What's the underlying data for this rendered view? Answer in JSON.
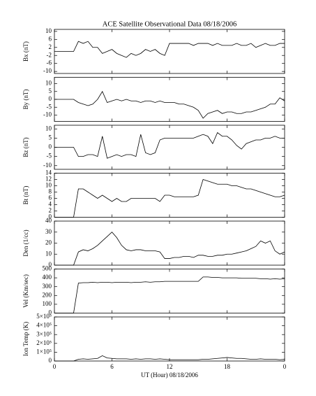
{
  "chart_data": [
    {
      "type": "line",
      "title": "ACE Satellite Observational Data   08/18/2006",
      "ylabel": "Bx (nT)",
      "color": "#000000",
      "ylim": [
        -11,
        11
      ],
      "yticks": [
        10,
        6,
        2,
        -2,
        -6,
        -10
      ],
      "x": [
        0,
        0.5,
        1,
        1.5,
        2,
        2.5,
        3,
        3.5,
        4,
        4.5,
        5,
        5.5,
        6,
        6.5,
        7,
        7.5,
        8,
        8.5,
        9,
        9.5,
        10,
        10.5,
        11,
        11.5,
        12,
        12.5,
        13,
        13.5,
        14,
        14.5,
        15,
        15.5,
        16,
        16.5,
        17,
        17.5,
        18,
        18.5,
        19,
        19.5,
        20,
        20.5,
        21,
        21.5,
        22,
        22.5,
        23,
        23.5,
        24
      ],
      "values": [
        0,
        0,
        0,
        0,
        0,
        5,
        4,
        5,
        2,
        2,
        -1,
        0,
        1,
        -1,
        -2,
        -3,
        -1,
        -2,
        -1,
        1,
        0,
        1,
        -1,
        -2,
        4,
        4,
        4,
        4,
        4,
        3,
        4,
        4,
        4,
        3,
        4,
        3,
        3,
        3,
        4,
        3,
        3,
        4,
        2,
        3,
        4,
        3,
        3,
        4,
        4
      ]
    },
    {
      "type": "line",
      "ylabel": "By (nT)",
      "color": "#000000",
      "ylim": [
        -14,
        14
      ],
      "yticks": [
        10,
        5,
        0,
        -5,
        -10
      ],
      "x": [
        0,
        0.5,
        1,
        1.5,
        2,
        2.5,
        3,
        3.5,
        4,
        4.5,
        5,
        5.5,
        6,
        6.5,
        7,
        7.5,
        8,
        8.5,
        9,
        9.5,
        10,
        10.5,
        11,
        11.5,
        12,
        12.5,
        13,
        13.5,
        14,
        14.5,
        15,
        15.5,
        16,
        16.5,
        17,
        17.5,
        18,
        18.5,
        19,
        19.5,
        20,
        20.5,
        21,
        21.5,
        22,
        22.5,
        23,
        23.5,
        24
      ],
      "values": [
        0,
        0,
        0,
        0,
        0,
        -2,
        -3,
        -4,
        -3,
        0,
        5,
        -2,
        -1,
        0,
        -1,
        0,
        -1,
        -1,
        -2,
        -1,
        -1,
        -2,
        -1,
        -2,
        -2,
        -2,
        -3,
        -3,
        -4,
        -5,
        -7,
        -12,
        -9,
        -8,
        -7,
        -9,
        -8,
        -8,
        -9,
        -9,
        -8,
        -8,
        -7,
        -6,
        -5,
        -3,
        -3,
        1,
        -1
      ]
    },
    {
      "type": "line",
      "ylabel": "Bz (nT)",
      "color": "#000000",
      "ylim": [
        -12,
        12
      ],
      "yticks": [
        10,
        5,
        0,
        -5,
        -10
      ],
      "x": [
        0,
        0.5,
        1,
        1.5,
        2,
        2.5,
        3,
        3.5,
        4,
        4.5,
        5,
        5.5,
        6,
        6.5,
        7,
        7.5,
        8,
        8.5,
        9,
        9.5,
        10,
        10.5,
        11,
        11.5,
        12,
        12.5,
        13,
        13.5,
        14,
        14.5,
        15,
        15.5,
        16,
        16.5,
        17,
        17.5,
        18,
        18.5,
        19,
        19.5,
        20,
        20.5,
        21,
        21.5,
        22,
        22.5,
        23,
        23.5,
        24
      ],
      "values": [
        0,
        0,
        0,
        0,
        0,
        -5,
        -5,
        -4,
        -4,
        -5,
        6,
        -6,
        -5,
        -4,
        -5,
        -4,
        -4,
        -5,
        7,
        -3,
        -4,
        -3,
        4,
        5,
        5,
        5,
        5,
        5,
        5,
        5,
        6,
        7,
        6,
        2,
        8,
        6,
        6,
        4,
        1,
        -1,
        2,
        3,
        4,
        4,
        5,
        5,
        6,
        5,
        5
      ]
    },
    {
      "type": "line",
      "ylabel": "Bt (nT)",
      "color": "#000000",
      "ylim": [
        0,
        14
      ],
      "yticks": [
        14,
        12,
        10,
        8,
        6,
        4,
        2,
        0
      ],
      "x": [
        0,
        0.5,
        1,
        1.5,
        2,
        2.5,
        3,
        3.5,
        4,
        4.5,
        5,
        5.5,
        6,
        6.5,
        7,
        7.5,
        8,
        8.5,
        9,
        9.5,
        10,
        10.5,
        11,
        11.5,
        12,
        12.5,
        13,
        13.5,
        14,
        14.5,
        15,
        15.5,
        16,
        16.5,
        17,
        17.5,
        18,
        18.5,
        19,
        19.5,
        20,
        20.5,
        21,
        21.5,
        22,
        22.5,
        23,
        23.5,
        24
      ],
      "values": [
        0,
        0,
        0,
        0,
        0,
        9,
        9,
        8,
        7,
        6,
        7,
        6,
        5,
        6,
        5,
        5,
        6,
        6,
        6,
        6,
        6,
        6,
        5,
        7,
        7,
        6.5,
        6.5,
        6.5,
        6.5,
        6.5,
        7,
        12,
        11.5,
        11,
        10.5,
        10.5,
        10.5,
        10,
        10,
        9.5,
        9,
        9,
        8.5,
        8,
        7.5,
        7,
        6.5,
        6.5,
        7
      ]
    },
    {
      "type": "line",
      "ylabel": "Den (1/cc)",
      "color": "#000000",
      "ylim": [
        0,
        40
      ],
      "yticks": [
        40,
        30,
        20,
        10,
        0
      ],
      "x": [
        0,
        0.5,
        1,
        1.5,
        2,
        2.5,
        3,
        3.5,
        4,
        4.5,
        5,
        5.5,
        6,
        6.5,
        7,
        7.5,
        8,
        8.5,
        9,
        9.5,
        10,
        10.5,
        11,
        11.5,
        12,
        12.5,
        13,
        13.5,
        14,
        14.5,
        15,
        15.5,
        16,
        16.5,
        17,
        17.5,
        18,
        18.5,
        19,
        19.5,
        20,
        20.5,
        21,
        21.5,
        22,
        22.5,
        23,
        23.5,
        24
      ],
      "values": [
        0,
        0,
        0,
        0,
        0,
        12,
        14,
        13,
        15,
        18,
        22,
        26,
        30,
        25,
        18,
        14,
        13,
        14,
        14,
        13,
        13,
        13,
        12,
        6,
        6,
        7,
        7,
        8,
        8,
        7,
        9,
        9,
        8,
        8,
        9,
        9,
        10,
        10,
        11,
        12,
        13,
        15,
        17,
        22,
        20,
        22,
        13,
        10,
        12
      ]
    },
    {
      "type": "line",
      "ylabel": "Vel (Km/sec)",
      "color": "#000000",
      "ylim": [
        0,
        500
      ],
      "yticks": [
        500,
        400,
        300,
        200,
        100,
        0
      ],
      "x": [
        0,
        0.5,
        1,
        1.5,
        2,
        2.5,
        3,
        3.5,
        4,
        4.5,
        5,
        5.5,
        6,
        6.5,
        7,
        7.5,
        8,
        8.5,
        9,
        9.5,
        10,
        10.5,
        11,
        11.5,
        12,
        12.5,
        13,
        13.5,
        14,
        14.5,
        15,
        15.5,
        16,
        16.5,
        17,
        17.5,
        18,
        18.5,
        19,
        19.5,
        20,
        20.5,
        21,
        21.5,
        22,
        22.5,
        23,
        23.5,
        24
      ],
      "values": [
        0,
        0,
        0,
        0,
        0,
        340,
        345,
        345,
        350,
        345,
        350,
        350,
        345,
        350,
        350,
        350,
        345,
        350,
        350,
        355,
        350,
        355,
        355,
        360,
        360,
        360,
        360,
        360,
        360,
        360,
        360,
        410,
        410,
        405,
        405,
        400,
        400,
        400,
        400,
        395,
        395,
        395,
        395,
        390,
        390,
        385,
        390,
        385,
        390
      ]
    },
    {
      "type": "line",
      "ylabel": "Ion Temp (K)",
      "xlabel": "UT (Hour)  08/18/2006",
      "color": "#000000",
      "ylim": [
        0,
        500000
      ],
      "yticks": [
        {
          "value": 500000,
          "label": "5×10⁵"
        },
        {
          "value": 400000,
          "label": "4×10⁵"
        },
        {
          "value": 300000,
          "label": "3×10⁵"
        },
        {
          "value": 200000,
          "label": "2×10⁵"
        },
        {
          "value": 100000,
          "label": "1×10⁵"
        },
        0
      ],
      "xlim": [
        0,
        24
      ],
      "xticks": [
        0,
        6,
        12,
        18,
        {
          "value": 24,
          "label": "0"
        }
      ],
      "x": [
        0,
        0.5,
        1,
        1.5,
        2,
        2.5,
        3,
        3.5,
        4,
        4.5,
        5,
        5.5,
        6,
        6.5,
        7,
        7.5,
        8,
        8.5,
        9,
        9.5,
        10,
        10.5,
        11,
        11.5,
        12,
        12.5,
        13,
        13.5,
        14,
        14.5,
        15,
        15.5,
        16,
        16.5,
        17,
        17.5,
        18,
        18.5,
        19,
        19.5,
        20,
        20.5,
        21,
        21.5,
        22,
        22.5,
        23,
        23.5,
        24
      ],
      "values": [
        0,
        0,
        0,
        0,
        0,
        20000,
        25000,
        20000,
        25000,
        30000,
        60000,
        35000,
        30000,
        25000,
        25000,
        25000,
        20000,
        25000,
        20000,
        25000,
        25000,
        20000,
        25000,
        20000,
        15000,
        15000,
        15000,
        15000,
        15000,
        15000,
        15000,
        20000,
        20000,
        25000,
        30000,
        35000,
        40000,
        35000,
        30000,
        30000,
        25000,
        20000,
        20000,
        25000,
        20000,
        20000,
        20000,
        15000,
        20000
      ]
    }
  ]
}
